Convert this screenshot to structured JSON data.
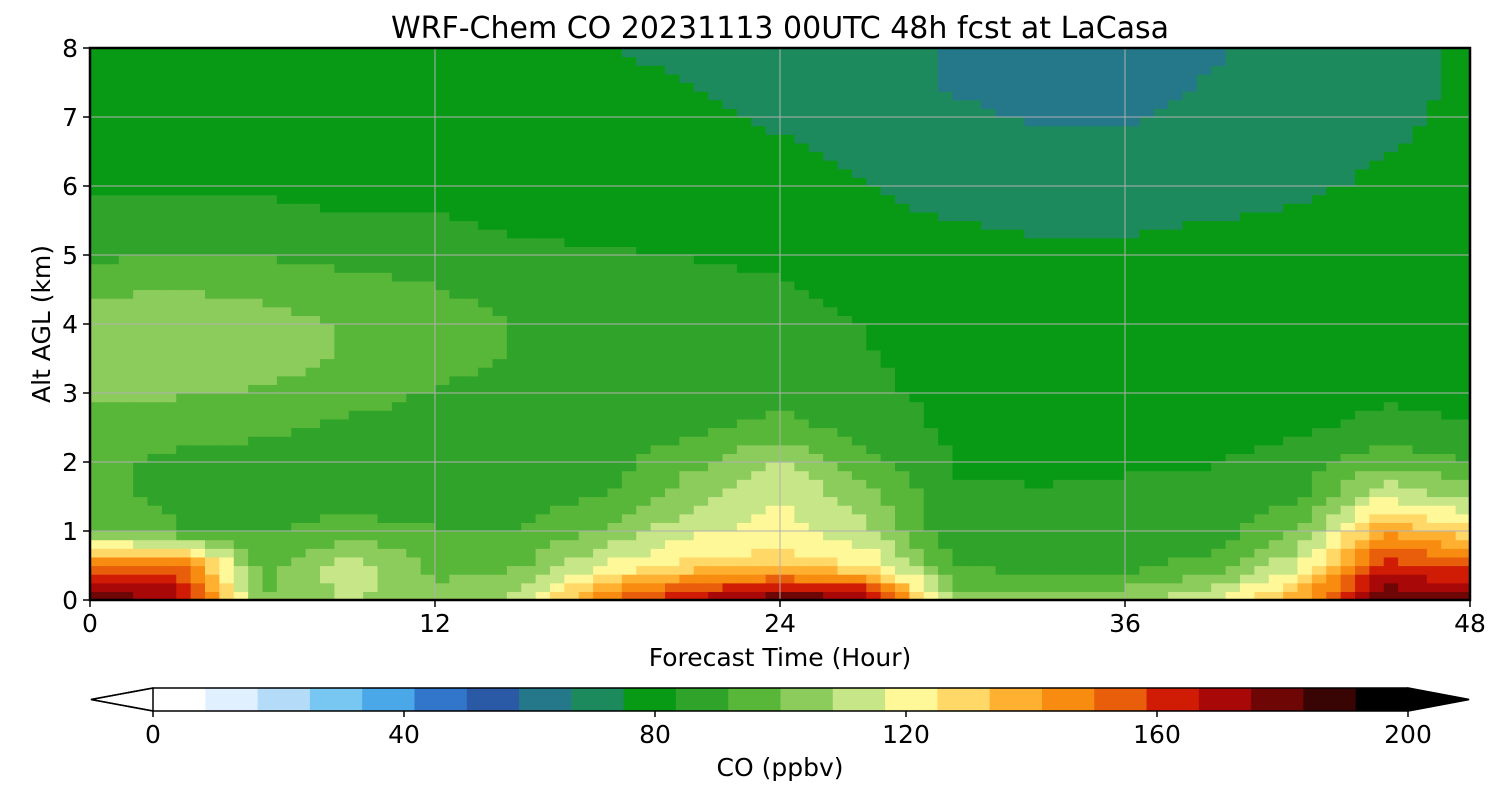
{
  "chart_data": {
    "type": "heatmap",
    "title": "WRF-Chem CO  20231113 00UTC 48h fcst at LaCasa",
    "xlabel": "Forecast Time (Hour)",
    "ylabel": "Alt AGL (km)",
    "xlim": [
      0,
      48
    ],
    "ylim": [
      0,
      8
    ],
    "xticks": [
      "0",
      "12",
      "24",
      "36",
      "48"
    ],
    "yticks": [
      "0",
      "1",
      "2",
      "3",
      "4",
      "5",
      "6",
      "7",
      "8"
    ],
    "grid": true,
    "colorbar": {
      "label": "CO  (ppbv)",
      "range": [
        0,
        200
      ],
      "ticks": [
        "0",
        "40",
        "80",
        "120",
        "160",
        "200"
      ],
      "extend": "both",
      "colors": [
        "#ffffff",
        "#e0f0ff",
        "#b4dcf8",
        "#78c6f2",
        "#4aa8e8",
        "#3276cc",
        "#2a5aa6",
        "#24788a",
        "#1c8a5c",
        "#089a14",
        "#30a42a",
        "#58b638",
        "#8ccc5c",
        "#c6e688",
        "#fff898",
        "#ffd868",
        "#ffb030",
        "#f88c10",
        "#e85e0a",
        "#d01c04",
        "#a80808",
        "#6e0606",
        "#380404",
        "#000000"
      ]
    },
    "series": [
      {
        "x": 0,
        "values": [
          182,
          148,
          100,
          94,
          93,
          96,
          102,
          106,
          103,
          99,
          90,
          86,
          82,
          80,
          78,
          77,
          76
        ]
      },
      {
        "x": 3,
        "values": [
          175,
          155,
          92,
          90,
          90,
          94,
          101,
          107,
          105,
          100,
          92,
          87,
          82,
          80,
          78,
          77,
          76
        ]
      },
      {
        "x": 6,
        "values": [
          100,
          96,
          91,
          89,
          89,
          93,
          99,
          104,
          103,
          98,
          91,
          87,
          82,
          80,
          78,
          77,
          76
        ]
      },
      {
        "x": 9,
        "values": [
          110,
          114,
          95,
          88,
          87,
          90,
          95,
          99,
          99,
          95,
          89,
          84,
          80,
          79,
          78,
          77,
          76
        ]
      },
      {
        "x": 12,
        "values": [
          102,
          97,
          92,
          88,
          86,
          88,
          91,
          94,
          95,
          92,
          88,
          84,
          80,
          79,
          78,
          77,
          76
        ]
      },
      {
        "x": 15,
        "values": [
          112,
          99,
          92,
          88,
          86,
          87,
          89,
          91,
          91,
          89,
          85,
          82,
          80,
          79,
          78,
          77,
          76
        ]
      },
      {
        "x": 18,
        "values": [
          150,
          118,
          102,
          92,
          88,
          87,
          88,
          89,
          89,
          87,
          84,
          81,
          79,
          78,
          77,
          76,
          75
        ]
      },
      {
        "x": 21,
        "values": [
          170,
          128,
          115,
          106,
          98,
          90,
          88,
          88,
          87,
          85,
          83,
          80,
          79,
          78,
          76,
          75,
          74
        ]
      },
      {
        "x": 24,
        "values": [
          185,
          130,
          120,
          117,
          110,
          95,
          88,
          87,
          86,
          84,
          82,
          80,
          78,
          76,
          74,
          73,
          72
        ]
      },
      {
        "x": 27,
        "values": [
          178,
          125,
          110,
          104,
          94,
          88,
          85,
          84,
          83,
          81,
          79,
          77,
          75,
          73,
          71,
          70,
          70
        ]
      },
      {
        "x": 30,
        "values": [
          105,
          92,
          85,
          84,
          83,
          82,
          81,
          80,
          80,
          79,
          77,
          75,
          72,
          70,
          68,
          66,
          66
        ]
      },
      {
        "x": 33,
        "values": [
          102,
          88,
          84,
          84,
          82,
          81,
          80,
          79,
          79,
          78,
          76,
          74,
          71,
          68,
          66,
          64,
          64
        ]
      },
      {
        "x": 36,
        "values": [
          106,
          89,
          85,
          84,
          83,
          81,
          80,
          79,
          79,
          78,
          76,
          74,
          71,
          69,
          66,
          65,
          65
        ]
      },
      {
        "x": 39,
        "values": [
          115,
          95,
          87,
          85,
          83,
          81,
          80,
          79,
          79,
          78,
          77,
          75,
          72,
          70,
          68,
          67,
          66
        ]
      },
      {
        "x": 42,
        "values": [
          140,
          115,
          100,
          90,
          86,
          82,
          80,
          79,
          79,
          78,
          77,
          76,
          74,
          72,
          70,
          69,
          69
        ]
      },
      {
        "x": 45,
        "values": [
          185,
          162,
          140,
          116,
          98,
          86,
          82,
          80,
          79,
          78,
          78,
          77,
          76,
          75,
          74,
          73,
          73
        ]
      },
      {
        "x": 48,
        "values": [
          178,
          155,
          128,
          106,
          92,
          84,
          80,
          79,
          78,
          78,
          77,
          77,
          77,
          76,
          76,
          76,
          76
        ]
      }
    ],
    "y": [
      0,
      0.5,
      1,
      1.5,
      2,
      2.5,
      3,
      3.5,
      4,
      4.5,
      5,
      5.5,
      6,
      6.5,
      7,
      7.5,
      8
    ]
  }
}
